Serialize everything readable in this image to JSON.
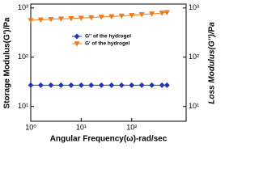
{
  "chart_data": {
    "type": "line",
    "x": [
      1,
      1.58,
      2.51,
      3.98,
      6.31,
      10,
      15.8,
      25.1,
      39.8,
      63.1,
      100,
      158,
      251,
      398,
      500
    ],
    "series": [
      {
        "name": "G'' of the hydrogel",
        "color": "#2233bb",
        "marker": "diamond",
        "axis": "y2",
        "values": [
          27,
          27,
          27,
          27,
          27,
          27,
          27,
          27,
          27,
          27,
          27,
          27,
          27,
          27,
          27
        ]
      },
      {
        "name": "G' of the hydrogel",
        "color": "#f07a1a",
        "marker": "triangle-down",
        "values": [
          560,
          575,
          590,
          600,
          612,
          625,
          640,
          655,
          670,
          690,
          710,
          735,
          760,
          790,
          810
        ]
      }
    ],
    "xlabel": "Angular Frequency(ω)-rad/sec",
    "ylabel": "Storage Modulus(G')/Pa",
    "y2label": "Loss Modulus(G'')/Pa",
    "xlim": [
      1,
      1200
    ],
    "ylim": [
      5,
      1200
    ],
    "y2lim": [
      5,
      1200
    ],
    "xticks": [
      {
        "value": 1,
        "label": "10⁰"
      },
      {
        "value": 10,
        "label": "10¹"
      },
      {
        "value": 100,
        "label": "10²"
      }
    ],
    "yticks": [
      {
        "value": 10,
        "label": "10¹"
      },
      {
        "value": 100,
        "label": "10²"
      },
      {
        "value": 1000,
        "label": "10³"
      }
    ],
    "y2ticks": [
      {
        "value": 10,
        "label": "10¹"
      },
      {
        "value": 100,
        "label": "10²"
      },
      {
        "value": 1000,
        "label": "10³"
      }
    ],
    "xscale": "log",
    "yscale": "log",
    "legend": "upper center"
  }
}
